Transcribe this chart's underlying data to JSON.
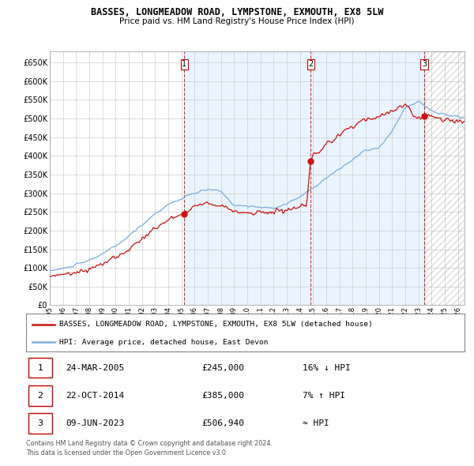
{
  "title": "BASSES, LONGMEADOW ROAD, LYMPSTONE, EXMOUTH, EX8 5LW",
  "subtitle": "Price paid vs. HM Land Registry's House Price Index (HPI)",
  "ylim": [
    0,
    680000
  ],
  "yticks": [
    0,
    50000,
    100000,
    150000,
    200000,
    250000,
    300000,
    350000,
    400000,
    450000,
    500000,
    550000,
    600000,
    650000
  ],
  "xlim_start": 1995.0,
  "xlim_end": 2026.5,
  "sale1_date": 2005.23,
  "sale1_price": 245000,
  "sale1_label": "1",
  "sale1_text": "24-MAR-2005",
  "sale1_amount": "£245,000",
  "sale1_relation": "16% ↓ HPI",
  "sale2_date": 2014.81,
  "sale2_price": 385000,
  "sale2_label": "2",
  "sale2_text": "22-OCT-2014",
  "sale2_amount": "£385,000",
  "sale2_relation": "7% ↑ HPI",
  "sale3_date": 2023.44,
  "sale3_price": 506940,
  "sale3_label": "3",
  "sale3_text": "09-JUN-2023",
  "sale3_amount": "£506,940",
  "sale3_relation": "≈ HPI",
  "hpi_color": "#7aaddc",
  "price_color": "#cc1111",
  "grid_color": "#cccccc",
  "background_color": "#ffffff",
  "vline_color": "#cc0000",
  "shade_color": "#ddeeff",
  "legend_line1": "BASSES, LONGMEADOW ROAD, LYMPSTONE, EXMOUTH, EX8 5LW (detached house)",
  "legend_line2": "HPI: Average price, detached house, East Devon",
  "footer1": "Contains HM Land Registry data © Crown copyright and database right 2024.",
  "footer2": "This data is licensed under the Open Government Licence v3.0."
}
